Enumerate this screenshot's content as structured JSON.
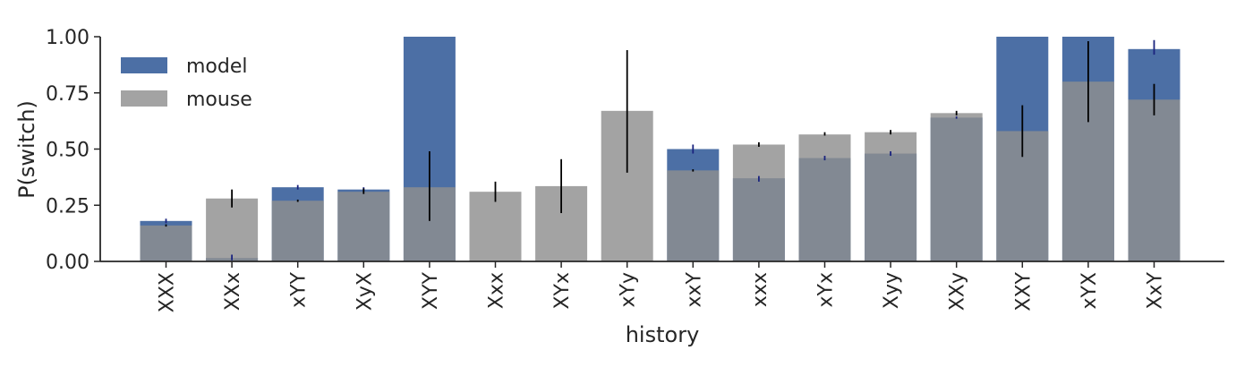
{
  "chart_data": {
    "type": "bar",
    "xlabel": "history",
    "ylabel": "P(switch)",
    "ylim": [
      0,
      1.0
    ],
    "yticks": [
      "0.00",
      "0.25",
      "0.50",
      "0.75",
      "1.00"
    ],
    "ytick_values": [
      0,
      0.25,
      0.5,
      0.75,
      1.0
    ],
    "grid": false,
    "legend_position": "top-left",
    "categories": [
      "XXX",
      "XXx",
      "xYY",
      "XyX",
      "XYY",
      "Xxx",
      "XYx",
      "xYy",
      "xxY",
      "xxx",
      "xYx",
      "Xyy",
      "XXy",
      "XXY",
      "xYX",
      "XxY"
    ],
    "series": [
      {
        "name": "model",
        "color": "#4c6fa5",
        "values": [
          0.18,
          0.015,
          0.33,
          0.32,
          1.0,
          0.0,
          0.0,
          0.0,
          0.5,
          0.37,
          0.46,
          0.48,
          0.64,
          1.0,
          1.0,
          0.945
        ],
        "err_low": [
          0.17,
          0.005,
          0.32,
          0.31,
          1.0,
          0.0,
          0.0,
          0.0,
          0.48,
          0.355,
          0.45,
          0.47,
          0.635,
          1.0,
          1.0,
          0.92
        ],
        "err_high": [
          0.19,
          0.03,
          0.34,
          0.33,
          1.0,
          0.0,
          0.0,
          0.0,
          0.52,
          0.38,
          0.47,
          0.49,
          0.645,
          1.0,
          1.0,
          0.985
        ],
        "err_color": "#1a237e"
      },
      {
        "name": "mouse",
        "color": "#8f8f8f",
        "values": [
          0.16,
          0.28,
          0.27,
          0.31,
          0.33,
          0.31,
          0.335,
          0.67,
          0.405,
          0.52,
          0.565,
          0.575,
          0.66,
          0.58,
          0.8,
          0.72
        ],
        "err_low": [
          0.155,
          0.24,
          0.265,
          0.3,
          0.18,
          0.265,
          0.215,
          0.395,
          0.4,
          0.51,
          0.56,
          0.565,
          0.65,
          0.465,
          0.62,
          0.65
        ],
        "err_high": [
          0.165,
          0.32,
          0.275,
          0.325,
          0.49,
          0.355,
          0.455,
          0.94,
          0.41,
          0.53,
          0.575,
          0.585,
          0.67,
          0.695,
          0.98,
          0.79
        ],
        "err_color": "#000000"
      }
    ]
  }
}
